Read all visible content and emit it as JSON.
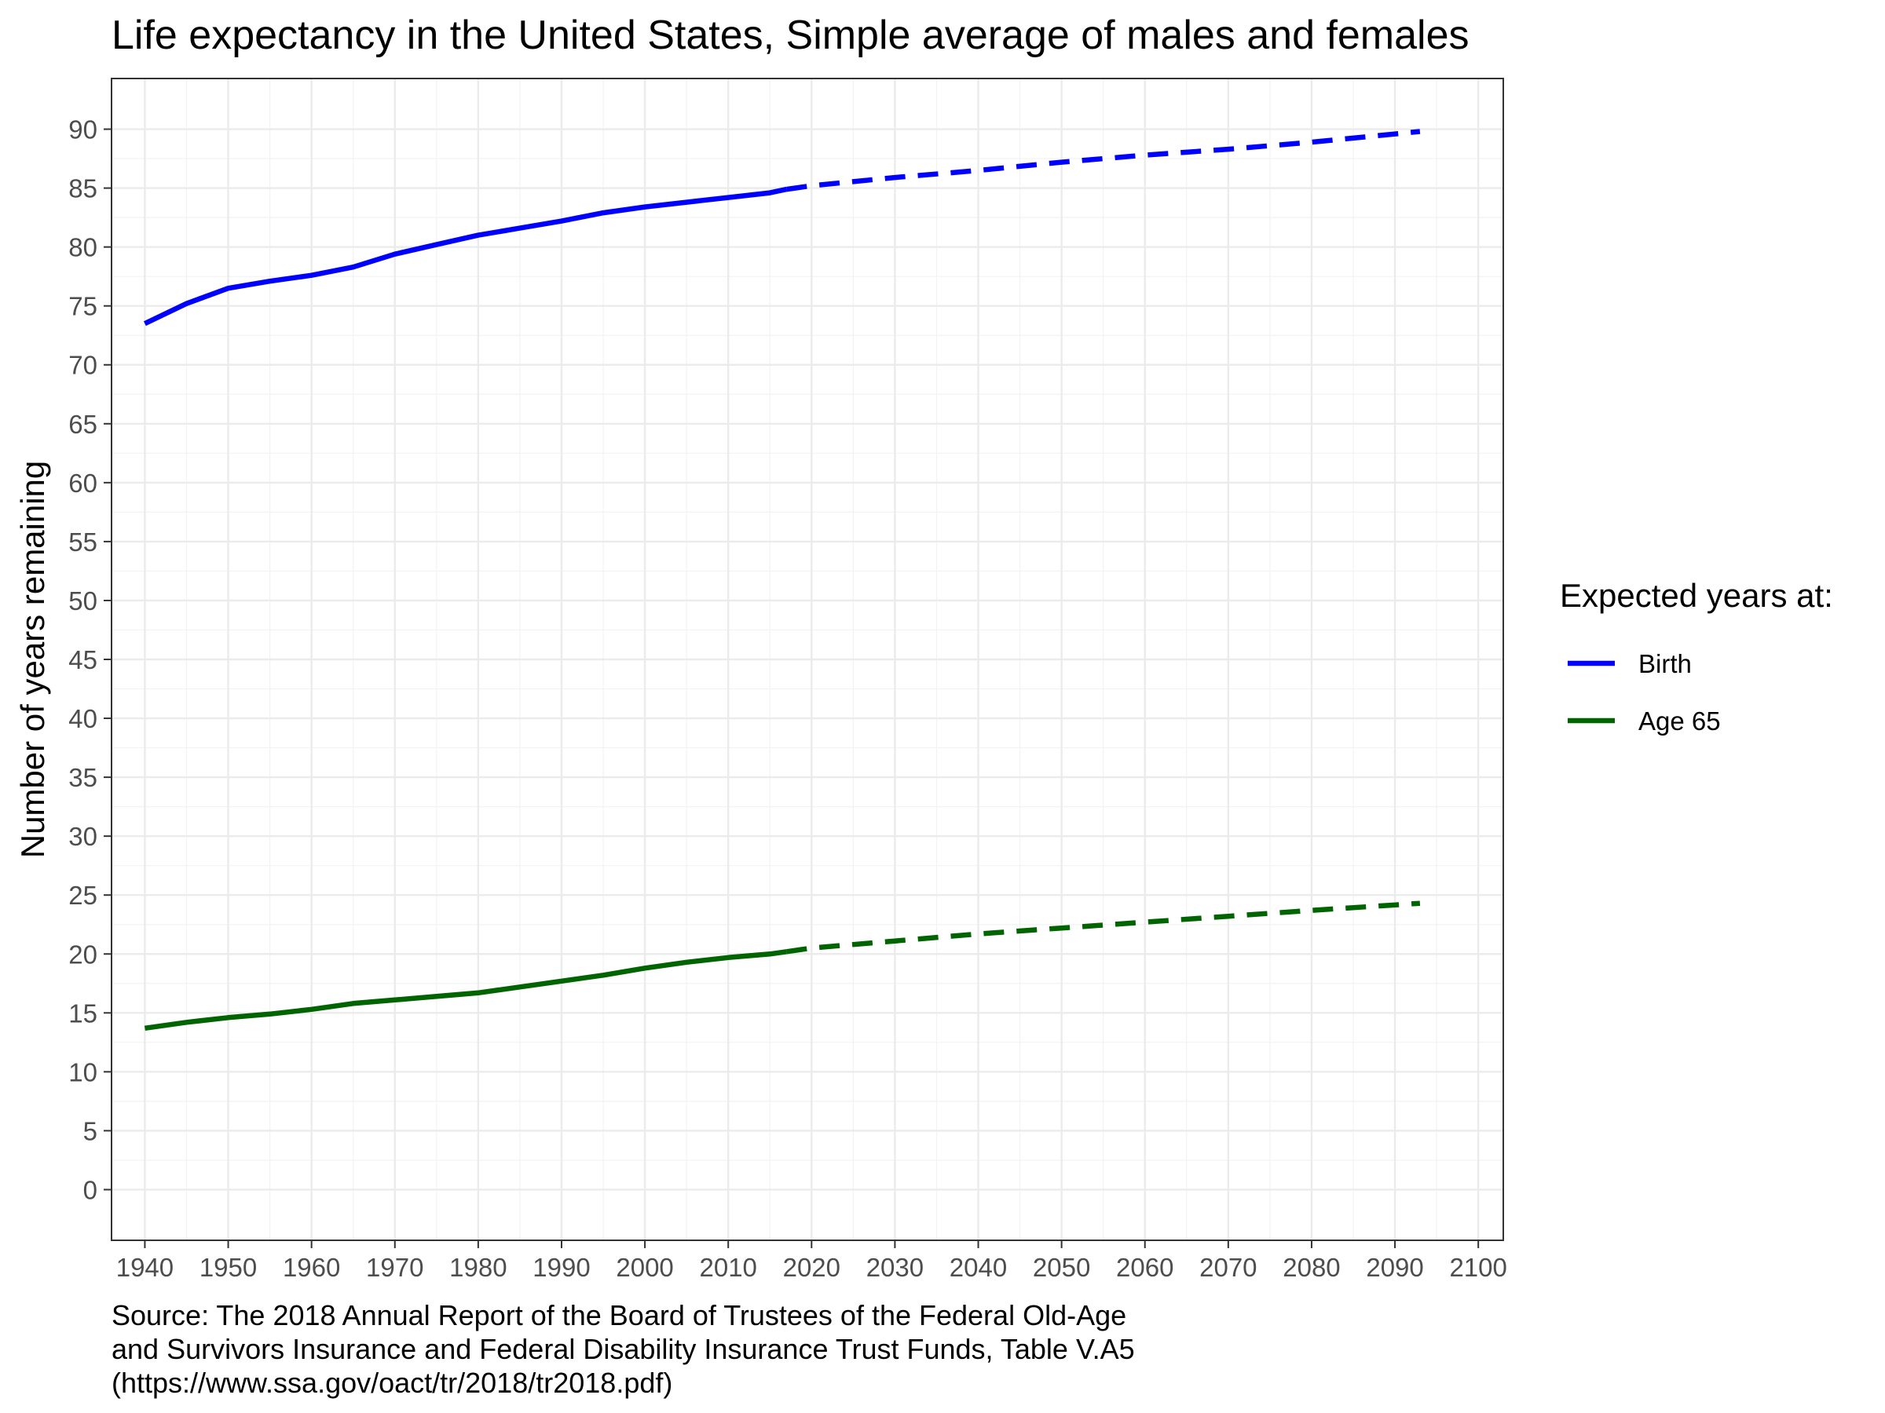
{
  "chart_data": {
    "type": "line",
    "title": "Life expectancy in the United States, Simple average of males and females",
    "xlabel": "",
    "ylabel": "Number of years remaining",
    "xlim": [
      1936,
      2103
    ],
    "ylim": [
      -4.3,
      94.3
    ],
    "x_ticks": [
      1940,
      1950,
      1960,
      1970,
      1980,
      1990,
      2000,
      2010,
      2020,
      2030,
      2040,
      2050,
      2060,
      2070,
      2080,
      2090,
      2100
    ],
    "y_ticks": [
      0,
      5,
      10,
      15,
      20,
      25,
      30,
      35,
      40,
      45,
      50,
      55,
      60,
      65,
      70,
      75,
      80,
      85,
      90
    ],
    "grid": true,
    "legend_title": "Expected years at:",
    "legend_position": "right",
    "projection_start_year": 2017,
    "series": [
      {
        "name": "Birth",
        "color": "#0000ff",
        "x": [
          1940,
          1945,
          1950,
          1955,
          1960,
          1965,
          1970,
          1975,
          1980,
          1985,
          1990,
          1995,
          2000,
          2005,
          2010,
          2015,
          2017,
          2020,
          2030,
          2040,
          2050,
          2060,
          2070,
          2080,
          2093
        ],
        "values": [
          73.5,
          75.2,
          76.5,
          77.1,
          77.6,
          78.3,
          79.4,
          80.2,
          81.0,
          81.6,
          82.2,
          82.9,
          83.4,
          83.8,
          84.2,
          84.6,
          84.9,
          85.2,
          85.9,
          86.5,
          87.2,
          87.8,
          88.3,
          88.9,
          89.8
        ]
      },
      {
        "name": "Age 65",
        "color": "#006400",
        "x": [
          1940,
          1945,
          1950,
          1955,
          1960,
          1965,
          1970,
          1975,
          1980,
          1985,
          1990,
          1995,
          2000,
          2005,
          2010,
          2015,
          2017,
          2020,
          2030,
          2040,
          2050,
          2060,
          2070,
          2080,
          2093
        ],
        "values": [
          13.7,
          14.2,
          14.6,
          14.9,
          15.3,
          15.8,
          16.1,
          16.4,
          16.7,
          17.2,
          17.7,
          18.2,
          18.8,
          19.3,
          19.7,
          20.0,
          20.2,
          20.5,
          21.1,
          21.7,
          22.2,
          22.7,
          23.2,
          23.7,
          24.3
        ]
      }
    ],
    "caption": [
      "Source: The 2018 Annual Report of the Board of Trustees of the Federal Old-Age",
      "and Survivors Insurance and Federal Disability Insurance Trust Funds, Table V.A5",
      "(https://www.ssa.gov/oact/tr/2018/tr2018.pdf)"
    ]
  }
}
